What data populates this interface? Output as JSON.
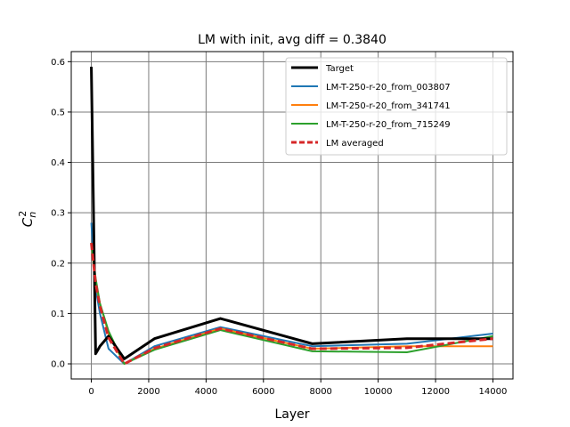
{
  "chart_data": {
    "type": "line",
    "title": "LM with init, avg diff = 0.3840",
    "xlabel": "Layer",
    "ylabel": "C",
    "ylabel_super": "2",
    "ylabel_sub": "n",
    "xlim": [
      -700,
      14700
    ],
    "ylim": [
      -0.03,
      0.62
    ],
    "xticks": [
      0,
      2000,
      4000,
      6000,
      8000,
      10000,
      12000,
      14000
    ],
    "yticks": [
      0.0,
      0.1,
      0.2,
      0.3,
      0.4,
      0.5,
      0.6
    ],
    "grid": true,
    "legend_position": "top-right",
    "series": [
      {
        "name": "Target",
        "color": "#000000",
        "style": "solid",
        "x": [
          0,
          150,
          300,
          600,
          1150,
          2200,
          4500,
          7700,
          11000,
          14000
        ],
        "y": [
          0.59,
          0.02,
          0.035,
          0.055,
          0.01,
          0.05,
          0.09,
          0.04,
          0.05,
          0.05
        ]
      },
      {
        "name": "LM-T-250-r-20_from_003807",
        "color": "#1f77b4",
        "style": "solid",
        "x": [
          0,
          150,
          300,
          600,
          1150,
          2200,
          4500,
          7700,
          11000,
          14000
        ],
        "y": [
          0.28,
          0.15,
          0.1,
          0.03,
          0.0,
          0.035,
          0.073,
          0.035,
          0.04,
          0.06
        ]
      },
      {
        "name": "LM-T-250-r-20_from_341741",
        "color": "#ff7f0e",
        "style": "solid",
        "x": [
          0,
          150,
          300,
          600,
          1150,
          2200,
          4500,
          7700,
          11000,
          14000
        ],
        "y": [
          0.24,
          0.16,
          0.12,
          0.06,
          0.0,
          0.03,
          0.07,
          0.03,
          0.035,
          0.035
        ]
      },
      {
        "name": "LM-T-250-r-20_from_715249",
        "color": "#2ca02c",
        "style": "solid",
        "x": [
          0,
          150,
          300,
          600,
          1150,
          2200,
          4500,
          7700,
          11000,
          14000
        ],
        "y": [
          0.24,
          0.17,
          0.12,
          0.065,
          0.0,
          0.028,
          0.067,
          0.025,
          0.023,
          0.055
        ]
      },
      {
        "name": "LM averaged",
        "color": "#d62728",
        "style": "dashed",
        "x": [
          0,
          150,
          300,
          600,
          1150,
          2200,
          4500,
          7700,
          11000,
          14000
        ],
        "y": [
          0.24,
          0.16,
          0.115,
          0.052,
          0.0,
          0.031,
          0.07,
          0.03,
          0.032,
          0.05
        ]
      }
    ]
  }
}
